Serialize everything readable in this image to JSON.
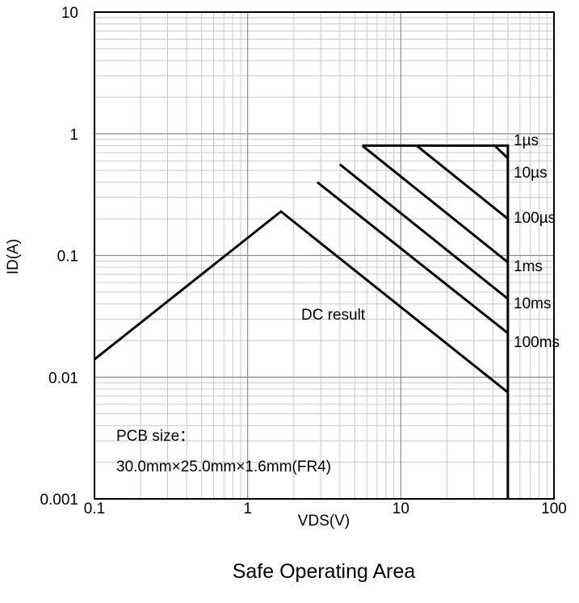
{
  "chart_data": {
    "type": "line",
    "title": "Safe Operating Area",
    "xlabel": "VDS(V)",
    "ylabel": "ID(A)",
    "x_scale": "log",
    "y_scale": "log",
    "xlim": [
      0.1,
      100
    ],
    "ylim": [
      0.001,
      10
    ],
    "x_ticks": [
      "0.1",
      "1",
      "10",
      "100"
    ],
    "y_ticks": [
      "0.001",
      "0.01",
      "0.1",
      "1",
      "10"
    ],
    "grid": true,
    "series": [
      {
        "name": "DC result",
        "x": [
          0.1,
          1.65,
          50
        ],
        "y": [
          0.014,
          0.23,
          0.0075
        ]
      },
      {
        "name": "100ms",
        "x": [
          2.85,
          50
        ],
        "y": [
          0.4,
          0.023
        ]
      },
      {
        "name": "10ms",
        "x": [
          4.0,
          50
        ],
        "y": [
          0.56,
          0.044
        ]
      },
      {
        "name": "1ms",
        "x": [
          5.6,
          50
        ],
        "y": [
          0.8,
          0.088
        ]
      },
      {
        "name": "100µs",
        "x": [
          12.7,
          50
        ],
        "y": [
          0.8,
          0.2
        ]
      },
      {
        "name": "10µs",
        "x": [
          41,
          50
        ],
        "y": [
          0.8,
          0.63
        ]
      },
      {
        "name": "1µs",
        "x": [
          5.6,
          50,
          50
        ],
        "y": [
          0.8,
          0.8,
          0.001
        ]
      }
    ],
    "annotations": {
      "dc": "DC result",
      "pcb_line1": "PCB size：",
      "pcb_line2": "30.0mm×25.0mm×1.6mm(FR4)",
      "l_1us": "1µs",
      "l_10us": "10µs",
      "l_100us": "100µs",
      "l_1ms": "1ms",
      "l_10ms": "10ms",
      "l_100ms": "100ms"
    }
  }
}
